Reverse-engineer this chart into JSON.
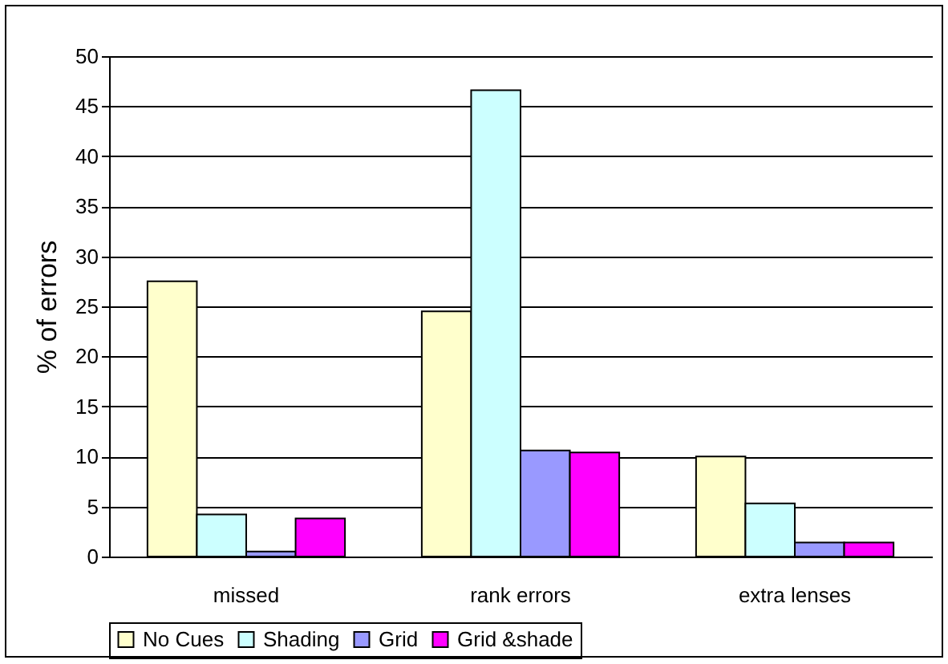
{
  "chart_data": {
    "type": "bar",
    "ylabel": "% of errors",
    "categories": [
      "missed",
      "rank errors",
      "extra lenses"
    ],
    "series": [
      {
        "name": "No Cues",
        "color": "#ffffcc",
        "values": [
          27.5,
          24.5,
          10.0
        ]
      },
      {
        "name": "Shading",
        "color": "#ccffff",
        "values": [
          4.2,
          46.6,
          5.3
        ]
      },
      {
        "name": "Grid",
        "color": "#9999ff",
        "values": [
          0.5,
          10.6,
          1.4
        ]
      },
      {
        "name": "Grid &shade",
        "color": "#ff00ff",
        "values": [
          3.8,
          10.4,
          1.4
        ]
      }
    ],
    "ylim": [
      0,
      50
    ],
    "yticks": [
      0,
      5,
      10,
      15,
      20,
      25,
      30,
      35,
      40,
      45,
      50
    ],
    "grid": "y",
    "legend": "bottom"
  }
}
